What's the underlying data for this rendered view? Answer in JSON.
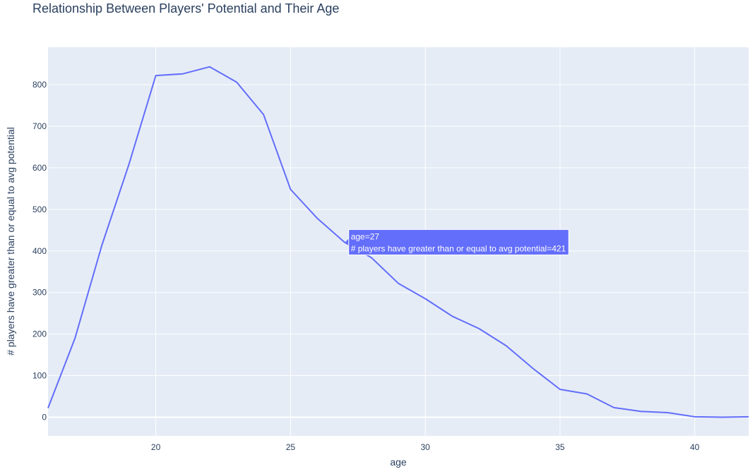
{
  "chart_data": {
    "type": "line",
    "title": "Relationship Between Players' Potential and Their Age",
    "xlabel": "age",
    "ylabel": "# players have greater than or equal to avg potential",
    "xlim": [
      16,
      42
    ],
    "ylim": [
      -45,
      890
    ],
    "xticks": [
      20,
      25,
      30,
      35,
      40
    ],
    "yticks": [
      0,
      100,
      200,
      300,
      400,
      500,
      600,
      700,
      800
    ],
    "grid": true,
    "legend": "none",
    "series": [
      {
        "x": [
          16,
          17,
          18,
          19,
          20,
          21,
          22,
          23,
          24,
          25,
          26,
          27,
          28,
          29,
          30,
          31,
          32,
          33,
          34,
          35,
          36,
          37,
          38,
          39,
          40,
          41,
          42
        ],
        "y": [
          22,
          190,
          414,
          608,
          822,
          826,
          843,
          806,
          728,
          548,
          478,
          421,
          384,
          322,
          285,
          243,
          213,
          172,
          117,
          67,
          56,
          23,
          14,
          11,
          1,
          0,
          1
        ]
      }
    ],
    "hover": {
      "x_text": "age=27",
      "y_text": "# players have greater than or equal to avg potential=421",
      "point_x": 27,
      "point_y": 421
    }
  },
  "colors": {
    "line": "#636efa",
    "plot_bg": "#e5ecf6",
    "grid": "#ffffff",
    "text": "#2a3f5f",
    "hover_bg": "#636efa",
    "hover_text": "#ffffff"
  }
}
